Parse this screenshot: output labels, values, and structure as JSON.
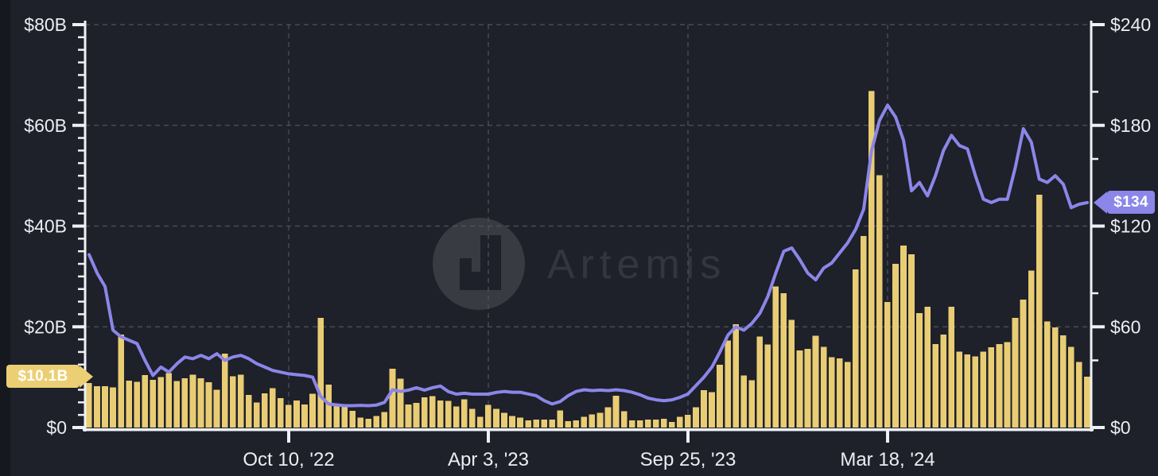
{
  "colors": {
    "background": "#1e202a",
    "bar": "#e9cd74",
    "line": "#8b86e8",
    "axis": "#eef0f5",
    "grid": "#50535e",
    "tick_label": "#eceef4",
    "tag_bar_bg": "#eccf74",
    "tag_line_bg": "#8b86e8"
  },
  "watermark": {
    "brand": "Artemis",
    "logo_icon": "artemis-pixel-logo"
  },
  "tags": {
    "latest_bar": "$10.1B",
    "latest_line": "$134"
  },
  "chart_data": {
    "type": "bar+line",
    "title": "",
    "xlabel": "",
    "ylabel_left": "",
    "ylabel_right": "",
    "grid": "dashed",
    "x_tick_labels": [
      {
        "label": "Oct 10, '22",
        "index": 25
      },
      {
        "label": "Apr 3, '23",
        "index": 50
      },
      {
        "label": "Sep 25, '23",
        "index": 75
      },
      {
        "label": "Mar 18, '24",
        "index": 100
      }
    ],
    "y_axis_left": {
      "tick_labels": [
        "$0",
        "$20B",
        "$40B",
        "$60B",
        "$80B"
      ],
      "tick_values": [
        0,
        20,
        40,
        60,
        80
      ],
      "range": [
        0,
        80
      ],
      "unit": "billions_usd",
      "minor_tick_step": 2.5
    },
    "y_axis_right": {
      "tick_labels": [
        "$0",
        "$60",
        "$120",
        "$180",
        "$240"
      ],
      "tick_values": [
        0,
        60,
        120,
        180,
        240
      ],
      "range": [
        0,
        240
      ],
      "unit": "usd",
      "minor_tick_step": 40
    },
    "series": [
      {
        "name": "weekly-volume-bars",
        "type": "bar",
        "axis": "left",
        "unit": "billions_usd",
        "latest_label": "$10.1B",
        "values": [
          8.8,
          8.2,
          8.2,
          8.0,
          18.5,
          9.3,
          9.1,
          10.4,
          9.5,
          10.0,
          10.8,
          9.2,
          9.8,
          10.5,
          9.8,
          9.0,
          7.5,
          14.7,
          10.2,
          10.5,
          6.5,
          5.0,
          6.8,
          7.8,
          5.8,
          4.5,
          5.4,
          4.6,
          6.7,
          21.8,
          8.5,
          4.4,
          4.1,
          3.3,
          2.0,
          1.7,
          2.3,
          3.1,
          11.7,
          9.7,
          4.6,
          4.9,
          6.0,
          6.2,
          5.4,
          5.3,
          4.2,
          5.6,
          3.7,
          2.1,
          4.5,
          3.7,
          2.9,
          2.3,
          2.0,
          1.4,
          1.6,
          1.6,
          1.6,
          3.4,
          1.3,
          1.4,
          2.1,
          2.6,
          2.9,
          4.0,
          6.3,
          3.2,
          1.4,
          1.4,
          1.6,
          1.6,
          1.7,
          1.1,
          2.1,
          2.5,
          4.0,
          7.4,
          7.0,
          12.5,
          17.3,
          20.5,
          10.3,
          9.4,
          18.1,
          16.5,
          28.0,
          26.7,
          21.4,
          15.3,
          15.6,
          18.2,
          16.0,
          14.0,
          13.7,
          13.0,
          31.4,
          38.0,
          66.8,
          50.1,
          24.9,
          32.5,
          36.1,
          34.4,
          22.7,
          24.0,
          16.6,
          18.5,
          24.0,
          15.1,
          14.5,
          14.1,
          15.1,
          15.9,
          16.6,
          17.0,
          21.8,
          25.4,
          31.2,
          46.2,
          21.1,
          19.9,
          18.3,
          16.0,
          13.0,
          10.1
        ]
      },
      {
        "name": "price-line",
        "type": "line",
        "axis": "right",
        "unit": "usd",
        "latest_label": "$134",
        "values": [
          103,
          92,
          84,
          58,
          54,
          52,
          50,
          40,
          31,
          36,
          33,
          38,
          42,
          41,
          43,
          41,
          44,
          40,
          42,
          43,
          41,
          38,
          36,
          34,
          33,
          32,
          31.5,
          31,
          30,
          18.5,
          14,
          13.5,
          13,
          13,
          13.2,
          13,
          13.4,
          15,
          22.5,
          21.5,
          22.3,
          23.7,
          22.3,
          23.7,
          24.7,
          21.4,
          19.9,
          20.4,
          19.9,
          19.9,
          19.9,
          20.9,
          21.5,
          21.0,
          21.0,
          20.0,
          19.0,
          16.0,
          14.0,
          15.5,
          19.0,
          21.5,
          22.5,
          22.0,
          22.3,
          22.0,
          22.5,
          22.0,
          21.0,
          19.5,
          17.5,
          16.5,
          16.0,
          16.5,
          18.0,
          20.0,
          25,
          30,
          36,
          45,
          55,
          60,
          58,
          62,
          68,
          78,
          92,
          105,
          107,
          100,
          92,
          88,
          95,
          98,
          104,
          110,
          118,
          130,
          165,
          183,
          192,
          185,
          171,
          141,
          146,
          138,
          150,
          165,
          174,
          168,
          166,
          150,
          136,
          134,
          136,
          136,
          155,
          178,
          170,
          148,
          146,
          150,
          145,
          131,
          133,
          134
        ]
      }
    ]
  }
}
